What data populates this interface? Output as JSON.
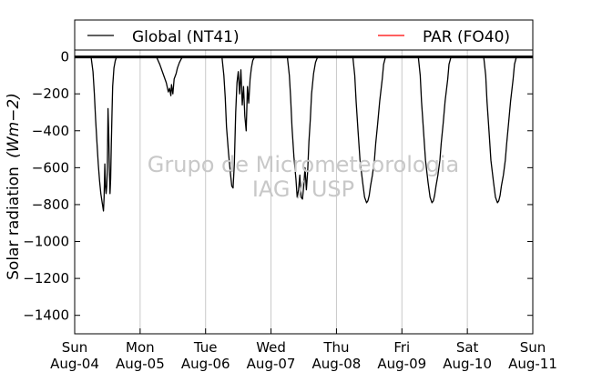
{
  "chart_data": {
    "type": "line",
    "ylabel": "Solar radiation",
    "ylabel_unit": "(Wm−2)",
    "ylim": [
      -1500,
      200
    ],
    "yticks": [
      0,
      -200,
      -400,
      -600,
      -800,
      -1000,
      -1200,
      -1400
    ],
    "x_ticks": [
      {
        "day": "Sun",
        "date": "Aug-04"
      },
      {
        "day": "Mon",
        "date": "Aug-05"
      },
      {
        "day": "Tue",
        "date": "Aug-06"
      },
      {
        "day": "Wed",
        "date": "Aug-07"
      },
      {
        "day": "Thu",
        "date": "Aug-08"
      },
      {
        "day": "Fri",
        "date": "Aug-09"
      },
      {
        "day": "Sat",
        "date": "Aug-10"
      },
      {
        "day": "Sun",
        "date": "Aug-11"
      }
    ],
    "grid_x": true,
    "legend_placement": "top",
    "watermark": [
      "Grupo de Micrometeorologia",
      "IAG / USP"
    ],
    "series": [
      {
        "name": "Global (NT41)",
        "color": "#000000",
        "x": [
          0.25,
          0.28,
          0.3,
          0.32,
          0.34,
          0.36,
          0.38,
          0.4,
          0.42,
          0.44,
          0.45,
          0.46,
          0.47,
          0.48,
          0.49,
          0.5,
          0.51,
          0.52,
          0.53,
          0.54,
          0.55,
          0.56,
          0.57,
          0.58,
          0.6,
          0.62,
          0.64,
          0.66,
          0.68,
          0.7,
          0.72,
          0.75,
          1.25,
          1.3,
          1.35,
          1.4,
          1.43,
          1.45,
          1.47,
          1.48,
          1.5,
          1.52,
          1.55,
          1.57,
          1.6,
          1.63,
          1.65,
          1.7,
          1.75,
          2.25,
          2.28,
          2.3,
          2.32,
          2.35,
          2.38,
          2.4,
          2.42,
          2.44,
          2.46,
          2.48,
          2.5,
          2.52,
          2.54,
          2.56,
          2.58,
          2.6,
          2.62,
          2.64,
          2.66,
          2.68,
          2.7,
          2.72,
          2.75,
          3.25,
          3.28,
          3.3,
          3.32,
          3.35,
          3.38,
          3.4,
          3.42,
          3.44,
          3.46,
          3.48,
          3.5,
          3.52,
          3.54,
          3.56,
          3.58,
          3.6,
          3.62,
          3.65,
          3.68,
          3.7,
          3.72,
          3.75,
          4.25,
          4.28,
          4.3,
          4.33,
          4.36,
          4.4,
          4.43,
          4.46,
          4.48,
          4.5,
          4.52,
          4.55,
          4.58,
          4.6,
          4.63,
          4.66,
          4.7,
          4.72,
          4.75,
          5.25,
          5.28,
          5.3,
          5.33,
          5.36,
          5.4,
          5.43,
          5.46,
          5.48,
          5.5,
          5.52,
          5.55,
          5.58,
          5.6,
          5.63,
          5.66,
          5.7,
          5.72,
          5.75,
          6.25,
          6.28,
          6.3,
          6.33,
          6.36,
          6.4,
          6.43,
          6.46,
          6.48,
          6.5,
          6.52,
          6.55,
          6.58,
          6.6,
          6.63,
          6.66,
          6.7,
          6.72,
          6.75,
          7.0
        ],
        "values": [
          0,
          -80,
          -200,
          -340,
          -460,
          -580,
          -670,
          -740,
          -790,
          -835,
          -760,
          -580,
          -700,
          -740,
          -700,
          -600,
          -280,
          -420,
          -600,
          -740,
          -660,
          -480,
          -300,
          -160,
          -60,
          -20,
          0,
          0,
          0,
          0,
          0,
          0,
          0,
          -40,
          -90,
          -140,
          -190,
          -170,
          -210,
          -150,
          -200,
          -120,
          -90,
          -60,
          -30,
          -10,
          0,
          0,
          0,
          0,
          -100,
          -220,
          -380,
          -520,
          -630,
          -700,
          -710,
          -580,
          -300,
          -140,
          -80,
          -200,
          -70,
          -260,
          -160,
          -320,
          -400,
          -160,
          -250,
          -120,
          -60,
          -20,
          0,
          0,
          -100,
          -220,
          -380,
          -540,
          -660,
          -760,
          -720,
          -640,
          -760,
          -770,
          -700,
          -600,
          -720,
          -620,
          -460,
          -340,
          -200,
          -90,
          -30,
          -10,
          0,
          0,
          0,
          -100,
          -240,
          -400,
          -560,
          -680,
          -760,
          -790,
          -780,
          -750,
          -700,
          -640,
          -560,
          -470,
          -360,
          -240,
          -120,
          -40,
          0,
          0,
          -100,
          -240,
          -400,
          -560,
          -680,
          -760,
          -790,
          -780,
          -750,
          -700,
          -640,
          -560,
          -470,
          -360,
          -240,
          -120,
          -40,
          0,
          0,
          -100,
          -240,
          -400,
          -560,
          -680,
          -760,
          -790,
          -780,
          -750,
          -700,
          -640,
          -560,
          -470,
          -360,
          -240,
          -120,
          -40,
          0,
          0
        ]
      },
      {
        "name": "PAR (FO40)",
        "color": "#ff0000",
        "x": [],
        "values": []
      }
    ]
  }
}
